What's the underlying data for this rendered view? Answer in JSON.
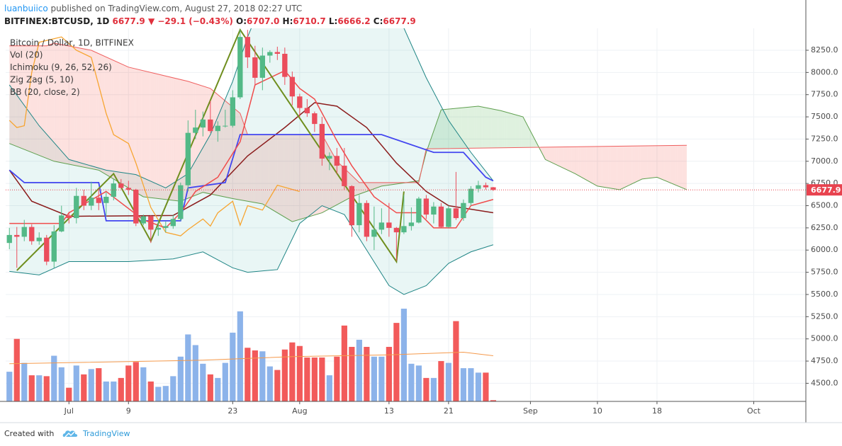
{
  "header": {
    "line1": [
      {
        "text": "luanbuiico",
        "color": "#2196f3"
      },
      {
        "text": " published on TradingView.com, August 27, 2018 02:27 UTC",
        "color": "#555555"
      }
    ],
    "line2": [
      {
        "text": "BITFINEX:BTCUSD, 1D",
        "color": "#222222"
      },
      {
        "text": " 6677.9 ",
        "color": "#e0303c"
      },
      {
        "text": "▼ ",
        "color": "#e0303c"
      },
      {
        "text": "−29.1 (−0.43%) ",
        "color": "#e0303c"
      },
      {
        "text": "O:",
        "color": "#222222"
      },
      {
        "text": "6707.0 ",
        "color": "#e0303c"
      },
      {
        "text": "H:",
        "color": "#222222"
      },
      {
        "text": "6710.7 ",
        "color": "#e0303c"
      },
      {
        "text": "L:",
        "color": "#222222"
      },
      {
        "text": "6666.2 ",
        "color": "#e0303c"
      },
      {
        "text": "C:",
        "color": "#222222"
      },
      {
        "text": "6677.9",
        "color": "#e0303c"
      }
    ]
  },
  "footer": {
    "created": "Created with",
    "brand": "TradingView"
  },
  "chart_data": {
    "type": "candlestick",
    "title": "Bitcoin / Dollar, 1D, BITFINEX",
    "legend": [
      "Vol (20)",
      "Ichimoku (9, 26, 52, 26)",
      "Zig Zag (5, 10)",
      "BB (20, close, 2)"
    ],
    "xlim": [
      173.5,
      281.0
    ],
    "xticks": [
      {
        "value": 182,
        "label": "Jul"
      },
      {
        "value": 190,
        "label": "9"
      },
      {
        "value": 204,
        "label": "23"
      },
      {
        "value": 213,
        "label": "Aug"
      },
      {
        "value": 225,
        "label": "13"
      },
      {
        "value": 233,
        "label": "21"
      },
      {
        "value": 244,
        "label": "Sep"
      },
      {
        "value": 253,
        "label": "10"
      },
      {
        "value": 261,
        "label": "18"
      },
      {
        "value": 274,
        "label": "Oct"
      }
    ],
    "ylim": [
      4296,
      8497
    ],
    "yticks": [
      {
        "value": 4500,
        "label": "4500.0"
      },
      {
        "value": 4750,
        "label": "4750.0"
      },
      {
        "value": 5000,
        "label": "5000.0"
      },
      {
        "value": 5250,
        "label": "5250.0"
      },
      {
        "value": 5500,
        "label": "5500.0"
      },
      {
        "value": 5750,
        "label": "5750.0"
      },
      {
        "value": 6000,
        "label": "6000.0"
      },
      {
        "value": 6250,
        "label": "6250.0"
      },
      {
        "value": 6500,
        "label": "6500.0"
      },
      {
        "value": 6750,
        "label": "6750.0"
      },
      {
        "value": 7000,
        "label": "7000.0"
      },
      {
        "value": 7250,
        "label": "7250.0"
      },
      {
        "value": 7500,
        "label": "7500.0"
      },
      {
        "value": 7750,
        "label": "7750.0"
      },
      {
        "value": 8000,
        "label": "8000.0"
      },
      {
        "value": 8250,
        "label": "8250.0"
      }
    ],
    "grid": true,
    "up_color": "#53b987",
    "down_color": "#eb4d5c",
    "volume_up_color": "#8cb3ea",
    "volume_down_color": "#f25a5a",
    "last_price_color": "#e8434f",
    "x": [
      174,
      175,
      176,
      177,
      178,
      179,
      180,
      181,
      182,
      183,
      184,
      185,
      186,
      187,
      188,
      189,
      190,
      191,
      192,
      193,
      194,
      195,
      196,
      197,
      198,
      199,
      200,
      201,
      202,
      203,
      204,
      205,
      206,
      207,
      208,
      209,
      210,
      211,
      212,
      213,
      214,
      215,
      216,
      217,
      218,
      219,
      220,
      221,
      222,
      223,
      224,
      225,
      226,
      227,
      228,
      229,
      230,
      231,
      232,
      233,
      234,
      235,
      236,
      237,
      238,
      239
    ],
    "open": [
      6080,
      6170,
      6150,
      6260,
      6100,
      6140,
      5870,
      6210,
      6390,
      6360,
      6610,
      6500,
      6590,
      6530,
      6600,
      6750,
      6700,
      6680,
      6300,
      6380,
      6230,
      6250,
      6270,
      6350,
      6730,
      7320,
      7380,
      7470,
      7340,
      7400,
      7400,
      7720,
      8400,
      8170,
      7940,
      8190,
      8230,
      8210,
      7950,
      7730,
      7600,
      7540,
      7420,
      7030,
      7060,
      6950,
      6720,
      6280,
      6530,
      6150,
      6230,
      6310,
      6250,
      6200,
      6270,
      6310,
      6580,
      6400,
      6490,
      6260,
      6470,
      6360,
      6530,
      6690,
      6730,
      6707.0
    ],
    "high": [
      6250,
      6260,
      6340,
      6290,
      6200,
      6170,
      6280,
      6500,
      6430,
      6700,
      6680,
      6770,
      6690,
      6650,
      6800,
      6800,
      6780,
      6690,
      6400,
      6390,
      6340,
      6320,
      6400,
      6760,
      7460,
      7580,
      7560,
      7680,
      7450,
      7580,
      7800,
      8480,
      8480,
      8300,
      8280,
      8250,
      8290,
      8280,
      8010,
      7760,
      7700,
      7560,
      7500,
      7100,
      7150,
      7150,
      6730,
      6620,
      6560,
      6490,
      6470,
      6530,
      6260,
      6620,
      6480,
      6600,
      6620,
      6540,
      6530,
      6500,
      6880,
      6570,
      6720,
      6780,
      6760,
      6710.7
    ],
    "low": [
      6010,
      5800,
      6100,
      6060,
      6060,
      5830,
      5800,
      6200,
      6300,
      6300,
      6450,
      6450,
      6450,
      6380,
      6560,
      6690,
      6620,
      6270,
      6280,
      6080,
      6160,
      6200,
      6240,
      6330,
      6660,
      7250,
      7280,
      7320,
      7220,
      7380,
      7380,
      7700,
      8050,
      7850,
      7800,
      8110,
      8140,
      7860,
      7630,
      7500,
      7500,
      7330,
      6950,
      6900,
      6860,
      6680,
      6150,
      6200,
      6100,
      6000,
      6180,
      6150,
      5880,
      6180,
      6220,
      6300,
      6350,
      6300,
      6250,
      6250,
      6340,
      6330,
      6500,
      6650,
      6680,
      6666.2
    ],
    "close": [
      6170,
      6150,
      6260,
      6100,
      6140,
      5870,
      6210,
      6390,
      6360,
      6610,
      6500,
      6590,
      6530,
      6600,
      6750,
      6700,
      6680,
      6300,
      6380,
      6230,
      6250,
      6270,
      6350,
      6730,
      7320,
      7380,
      7470,
      7340,
      7400,
      7400,
      7720,
      8400,
      8170,
      7940,
      8190,
      8230,
      8210,
      7950,
      7730,
      7600,
      7540,
      7420,
      7030,
      7060,
      6950,
      6720,
      6280,
      6530,
      6150,
      6230,
      6310,
      6250,
      6200,
      6270,
      6310,
      6580,
      6400,
      6490,
      6260,
      6470,
      6360,
      6530,
      6690,
      6730,
      6707.0,
      6677.9
    ],
    "volume": [
      4630,
      5000,
      4730,
      4590,
      4590,
      4580,
      4810,
      4680,
      4450,
      4700,
      4600,
      4660,
      4670,
      4520,
      4520,
      4560,
      4700,
      4740,
      4680,
      4520,
      4460,
      4470,
      4580,
      4800,
      5050,
      4930,
      4720,
      4600,
      4560,
      4730,
      5070,
      5310,
      4900,
      4870,
      4860,
      4690,
      4650,
      4880,
      4960,
      4920,
      4790,
      4790,
      4790,
      4590,
      4800,
      5150,
      4910,
      4990,
      4910,
      4800,
      4800,
      4910,
      5180,
      5340,
      4720,
      4700,
      4560,
      4560,
      4750,
      4730,
      5200,
      4670,
      4670,
      4620,
      4620,
      4310
    ],
    "vol_ma": {
      "color": "#f59a4c",
      "x": [
        174,
        200,
        212,
        225,
        235,
        239
      ],
      "values": [
        4720,
        4760,
        4800,
        4820,
        4850,
        4810
      ]
    },
    "bb": {
      "line_color": "#1f8585",
      "basis_color": "#8b1c1c",
      "fill": "rgba(38,166,154,0.10)",
      "upper": {
        "x": [
          174,
          178,
          182,
          187,
          191,
          195,
          198,
          201,
          204,
          206,
          208,
          224,
          227,
          230,
          233,
          236,
          239
        ],
        "values": [
          7860,
          7400,
          7020,
          6900,
          6850,
          6700,
          6860,
          7300,
          7900,
          8400,
          8800,
          8800,
          8500,
          7940,
          7460,
          7100,
          6780
        ]
      },
      "lower": {
        "x": [
          174,
          178,
          182,
          190,
          196,
          200,
          204,
          206,
          210,
          213,
          216,
          219,
          222,
          225,
          227,
          230,
          233,
          236,
          239
        ],
        "values": [
          5760,
          5720,
          5870,
          5870,
          5900,
          5980,
          5800,
          5750,
          5780,
          6300,
          6500,
          6400,
          6000,
          5600,
          5500,
          5600,
          5850,
          5980,
          6060
        ]
      },
      "basis": {
        "x": [
          174,
          177,
          182,
          196,
          201,
          206,
          211,
          215,
          218,
          222,
          226,
          230,
          233,
          239
        ],
        "values": [
          6900,
          6550,
          6380,
          6390,
          6620,
          7060,
          7380,
          7660,
          7620,
          7380,
          6980,
          6660,
          6500,
          6420
        ]
      }
    },
    "ichimoku": {
      "fill_up": "rgba(76,175,80,0.18)",
      "fill_down": "rgba(244,67,54,0.16)",
      "conversion": {
        "color": "#f04b4b",
        "x": [
          174,
          181,
          182,
          187,
          192,
          195,
          197,
          199,
          202,
          205,
          207,
          211,
          213,
          215,
          218,
          220,
          223,
          226,
          229,
          231,
          234,
          236,
          239
        ],
        "values": [
          6300,
          6300,
          6420,
          6660,
          6340,
          6250,
          6420,
          6660,
          6820,
          7220,
          7860,
          8020,
          7820,
          7700,
          7230,
          6950,
          6600,
          6420,
          6420,
          6250,
          6250,
          6500,
          6570
        ]
      },
      "base": {
        "color": "#4346f0",
        "x": [
          174,
          176,
          186,
          187,
          197,
          198,
          203,
          205,
          224,
          231,
          235,
          238,
          239
        ],
        "values": [
          6900,
          6760,
          6760,
          6330,
          6330,
          6700,
          6760,
          7300,
          7300,
          7100,
          7100,
          6820,
          6780
        ]
      },
      "span_a": {
        "color": "#5e9f4e",
        "x": [
          174,
          180,
          186,
          192,
          197,
          200,
          204,
          208,
          212,
          216,
          220,
          224,
          229,
          230,
          232,
          237,
          240,
          243,
          246,
          250,
          253,
          256,
          259,
          261,
          265
        ],
        "values": [
          7200,
          7000,
          6900,
          6600,
          6550,
          6650,
          6580,
          6520,
          6320,
          6420,
          6600,
          6720,
          6780,
          7100,
          7580,
          7620,
          7570,
          7500,
          7020,
          6860,
          6720,
          6680,
          6800,
          6820,
          6680
        ]
      },
      "span_b": {
        "color": "#ef5f5f",
        "x": [
          174,
          179,
          180,
          185,
          190,
          198,
          201,
          205,
          206,
          216,
          218,
          221,
          229,
          230,
          265
        ],
        "values": [
          8300,
          8300,
          8330,
          8250,
          8060,
          7900,
          7820,
          7540,
          7300,
          7300,
          7000,
          6760,
          6760,
          7140,
          7180
        ]
      },
      "lagging": {
        "color": "#f7a531",
        "x": [
          174,
          175,
          176,
          177,
          178,
          181,
          183,
          185,
          187,
          188,
          190,
          191,
          193,
          195,
          197,
          198,
          200,
          201,
          202,
          204,
          205,
          206,
          208,
          210,
          213
        ],
        "values": [
          7460,
          7380,
          7400,
          8000,
          8340,
          8400,
          8250,
          8170,
          7540,
          7300,
          7200,
          6980,
          6480,
          6200,
          6160,
          6230,
          6350,
          6270,
          6420,
          6550,
          6280,
          6500,
          6450,
          6730,
          6660
        ]
      }
    },
    "zigzag": {
      "color": "#6f8e1e",
      "x": [
        175,
        188,
        193,
        205,
        226,
        227
      ],
      "values": [
        5770,
        6860,
        6100,
        8480,
        5870,
        6660
      ]
    }
  }
}
